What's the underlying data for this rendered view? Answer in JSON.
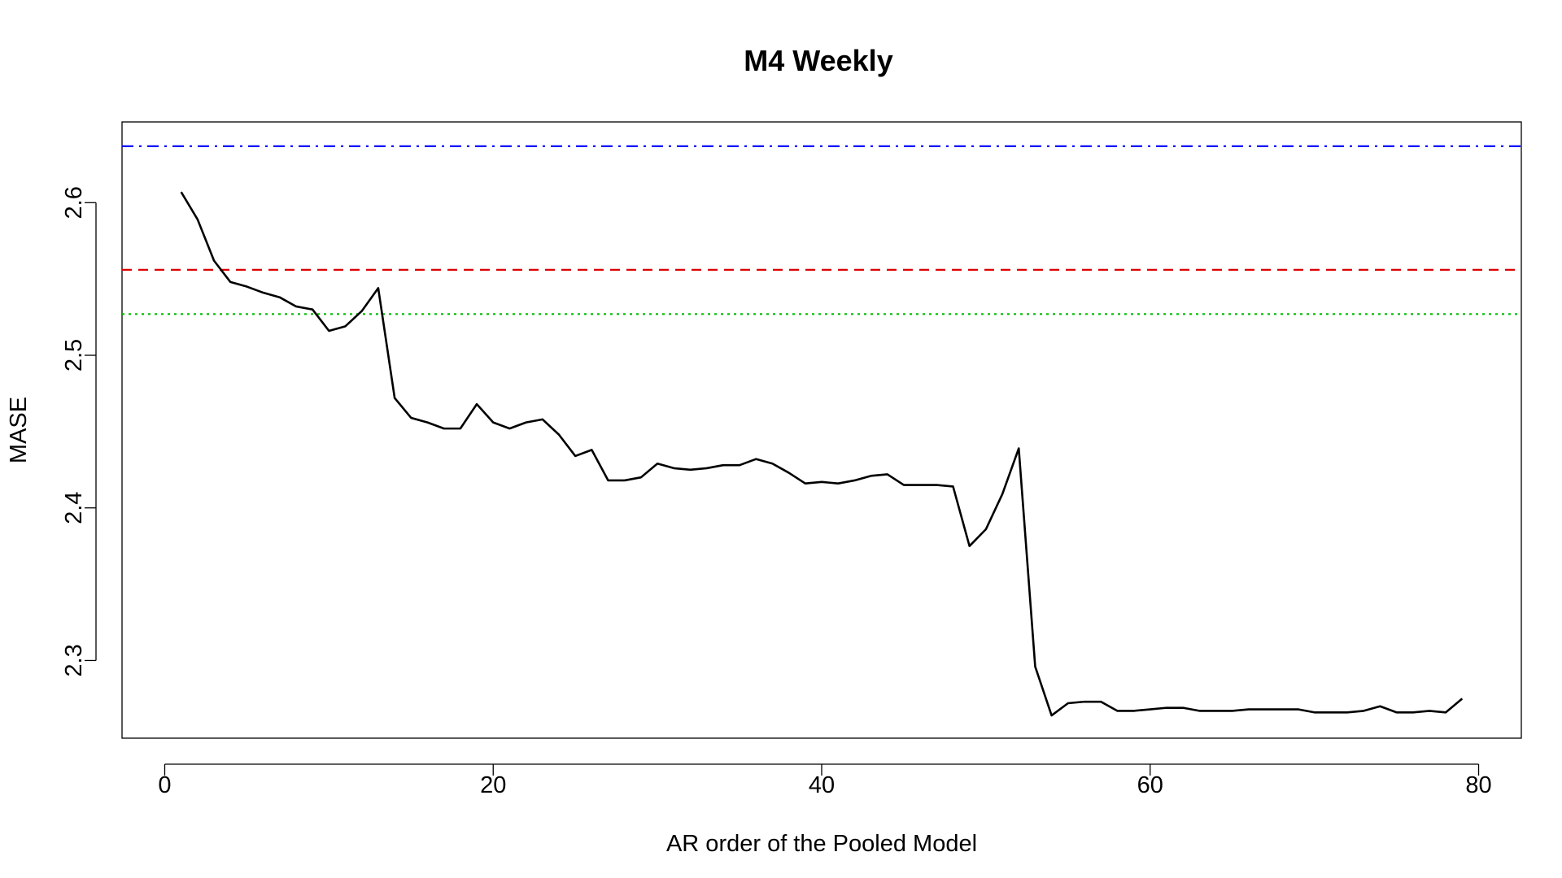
{
  "chart_data": {
    "type": "line",
    "title": "M4 Weekly",
    "xlabel": "AR order of the Pooled Model",
    "ylabel": "MASE",
    "xlim": [
      -2.6,
      82.6
    ],
    "ylim": [
      2.2491,
      2.6529
    ],
    "x_ticks": [
      0,
      20,
      40,
      60,
      80
    ],
    "x_tick_labels": [
      "0",
      "20",
      "40",
      "60",
      "80"
    ],
    "y_ticks": [
      2.3,
      2.4,
      2.5,
      2.6
    ],
    "y_tick_labels": [
      "2.3",
      "2.4",
      "2.5",
      "2.6"
    ],
    "grid": false,
    "series": [
      {
        "color": "#000000",
        "style": "solid",
        "x": [
          1,
          2,
          3,
          4,
          5,
          6,
          7,
          8,
          9,
          10,
          11,
          12,
          13,
          14,
          15,
          16,
          17,
          18,
          19,
          20,
          21,
          22,
          23,
          24,
          25,
          26,
          27,
          28,
          29,
          30,
          31,
          32,
          33,
          34,
          35,
          36,
          37,
          38,
          39,
          40,
          41,
          42,
          43,
          44,
          45,
          46,
          47,
          48,
          49,
          50,
          51,
          52,
          53,
          54,
          55,
          56,
          57,
          58,
          59,
          60,
          61,
          62,
          63,
          64,
          65,
          66,
          67,
          68,
          69,
          70,
          71,
          72,
          73,
          74,
          75,
          76,
          77,
          78,
          79
        ],
        "y": [
          2.607,
          2.589,
          2.562,
          2.548,
          2.545,
          2.541,
          2.538,
          2.532,
          2.53,
          2.516,
          2.519,
          2.529,
          2.544,
          2.472,
          2.459,
          2.456,
          2.452,
          2.452,
          2.468,
          2.456,
          2.452,
          2.456,
          2.458,
          2.448,
          2.434,
          2.438,
          2.418,
          2.418,
          2.42,
          2.429,
          2.426,
          2.425,
          2.426,
          2.428,
          2.428,
          2.432,
          2.429,
          2.423,
          2.416,
          2.417,
          2.416,
          2.418,
          2.421,
          2.422,
          2.415,
          2.415,
          2.415,
          2.414,
          2.375,
          2.386,
          2.409,
          2.439,
          2.296,
          2.264,
          2.272,
          2.273,
          2.273,
          2.267,
          2.267,
          2.268,
          2.269,
          2.269,
          2.267,
          2.267,
          2.267,
          2.268,
          2.268,
          2.268,
          2.268,
          2.266,
          2.266,
          2.266,
          2.267,
          2.27,
          2.266,
          2.266,
          2.267,
          2.266,
          2.275
        ]
      }
    ],
    "reference_lines": [
      {
        "y": 2.637,
        "color": "#0000ff",
        "style": "dashdot"
      },
      {
        "y": 2.556,
        "color": "#dd0000",
        "style": "dashed"
      },
      {
        "y": 2.527,
        "color": "#00bb00",
        "style": "dotted"
      }
    ]
  }
}
